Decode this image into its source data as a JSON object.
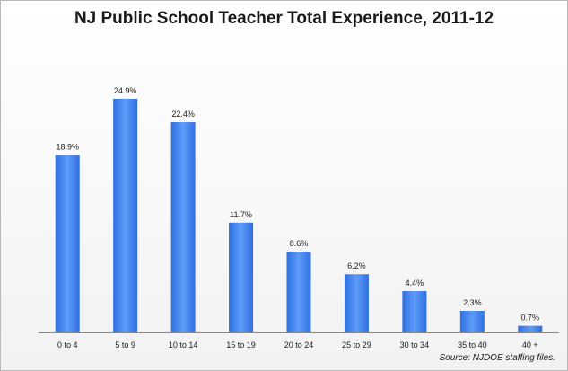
{
  "chart_data": {
    "type": "bar",
    "title": "NJ Public School Teacher Total Experience, 2011-12",
    "categories": [
      "0 to 4",
      "5 to 9",
      "10 to 14",
      "15 to 19",
      "20 to 24",
      "25 to 29",
      "30 to 34",
      "35 to 40",
      "40 +"
    ],
    "values": [
      18.9,
      24.9,
      22.4,
      11.7,
      8.6,
      6.2,
      4.4,
      2.3,
      0.7
    ],
    "value_labels": [
      "18.9%",
      "24.9%",
      "22.4%",
      "11.7%",
      "8.6%",
      "6.2%",
      "4.4%",
      "2.3%",
      "0.7%"
    ],
    "xlabel": "",
    "ylabel": "",
    "ylim": [
      0,
      27
    ],
    "grid": false,
    "bar_color": "#3d84f0",
    "source_note": "Source: NJDOE staffing files."
  }
}
